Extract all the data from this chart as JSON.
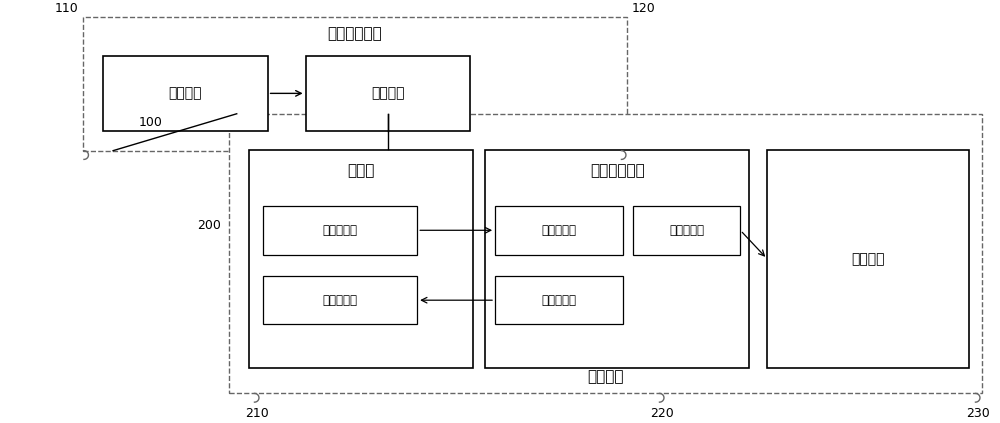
{
  "bg_color": "#ffffff",
  "line_color": "#000000",
  "dashed_color": "#666666",
  "font_family": "SimHei",
  "labels": {
    "110": "110",
    "120": "120",
    "100": "100",
    "200": "200",
    "210": "210",
    "220": "220",
    "230": "230",
    "dc_module": "直流稳压模块",
    "power_port": "电源接口",
    "regulator": "稳压单元",
    "mcu": "单片机",
    "mux": "多路模拟开关",
    "test_port": "测试接口",
    "detect_module": "检测模块",
    "volt_out": "电位输出端",
    "chan_sel": "通道选择端",
    "sig_in": "信号输入端",
    "sig_sample": "信号采样端",
    "sig_out": "信号输出端"
  }
}
